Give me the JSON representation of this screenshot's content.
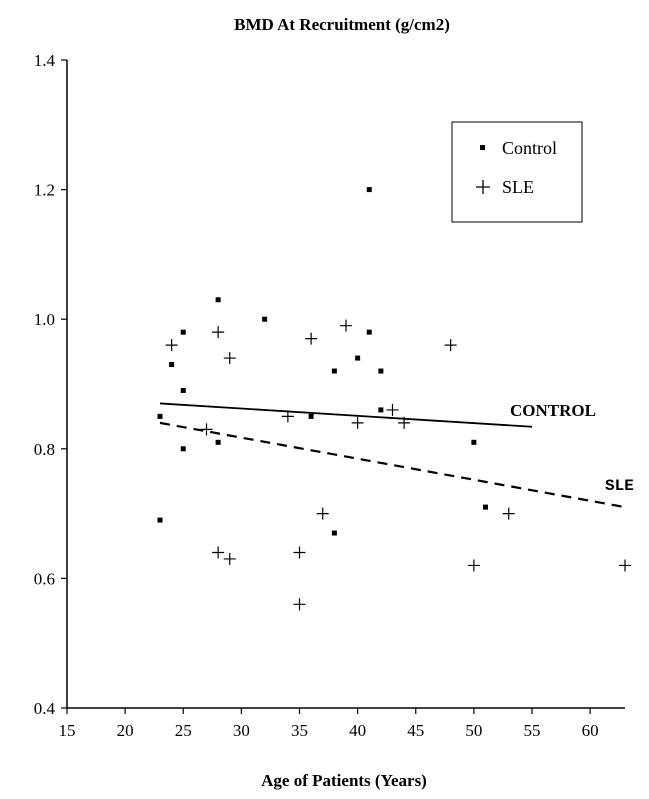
{
  "chart_data": {
    "type": "scatter",
    "title": "BMD At Recruitment (g/cm2)",
    "xlabel": "Age of Patients (Years)",
    "ylabel": "",
    "xlim": [
      15,
      63
    ],
    "ylim": [
      0.4,
      1.4
    ],
    "x_ticks": [
      15,
      20,
      25,
      30,
      35,
      40,
      45,
      50,
      55,
      60
    ],
    "x_tick_labels": [
      "15",
      "20",
      "25",
      "30",
      "35",
      "40",
      "45",
      "50",
      "55",
      "60"
    ],
    "y_ticks": [
      0.4,
      0.6,
      0.8,
      1.0,
      1.2,
      1.4
    ],
    "y_tick_labels": [
      "0.4",
      "0.6",
      "0.8",
      "1.0",
      "1.2",
      "1.4"
    ],
    "grid": false,
    "legend_position": "top-right",
    "series": [
      {
        "name": "Control",
        "marker": "square",
        "points": [
          [
            23,
            0.85
          ],
          [
            23,
            0.69
          ],
          [
            24,
            0.93
          ],
          [
            25,
            0.98
          ],
          [
            25,
            0.89
          ],
          [
            25,
            0.8
          ],
          [
            28,
            1.03
          ],
          [
            28,
            0.81
          ],
          [
            32,
            1.0
          ],
          [
            36,
            0.85
          ],
          [
            38,
            0.92
          ],
          [
            38,
            0.67
          ],
          [
            40,
            0.94
          ],
          [
            41,
            1.2
          ],
          [
            41,
            0.98
          ],
          [
            42,
            0.92
          ],
          [
            42,
            0.86
          ],
          [
            50,
            0.81
          ],
          [
            51,
            0.71
          ]
        ]
      },
      {
        "name": "SLE",
        "marker": "plus",
        "points": [
          [
            24,
            0.96
          ],
          [
            27,
            0.83
          ],
          [
            28,
            0.98
          ],
          [
            28,
            0.64
          ],
          [
            29,
            0.94
          ],
          [
            29,
            0.63
          ],
          [
            34,
            0.85
          ],
          [
            35,
            0.64
          ],
          [
            35,
            0.56
          ],
          [
            36,
            0.97
          ],
          [
            37,
            0.7
          ],
          [
            39,
            0.99
          ],
          [
            40,
            0.84
          ],
          [
            43,
            0.86
          ],
          [
            44,
            0.84
          ],
          [
            48,
            0.96
          ],
          [
            50,
            0.62
          ],
          [
            53,
            0.7
          ],
          [
            63,
            0.62
          ]
        ]
      }
    ],
    "trend_lines": [
      {
        "name": "CONTROL",
        "style": "solid",
        "x": [
          23,
          55
        ],
        "y": [
          0.87,
          0.834
        ]
      },
      {
        "name": "SLE",
        "style": "dashed",
        "x": [
          23,
          63
        ],
        "y": [
          0.84,
          0.71
        ]
      }
    ]
  }
}
